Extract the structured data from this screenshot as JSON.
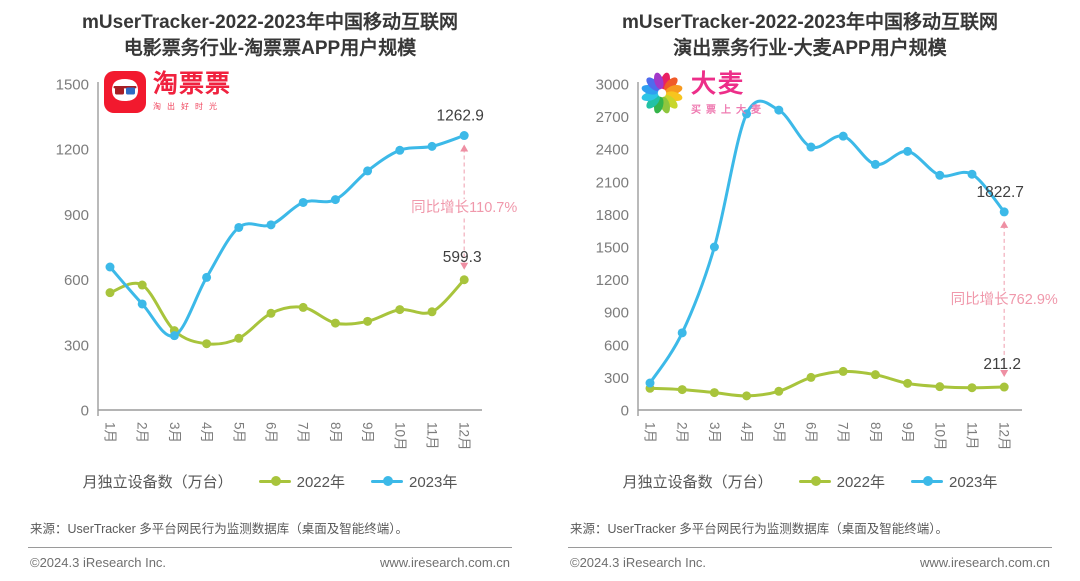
{
  "colors": {
    "green_2022": "#a8c43c",
    "blue_2023": "#3cb9e8",
    "annotation_pink": "#f098ab",
    "dashed_pink": "#f3b4c0",
    "arrow_pink": "#ee8fa3",
    "axis_gray": "#9c9c9c",
    "tick_text": "#7c7c7c",
    "value_text": "#3f3f3f",
    "taopiaopiao_red": "#f2192e",
    "damai_pink": "#ed2e89"
  },
  "chart_data": [
    {
      "type": "line",
      "title_lines": [
        "mUserTracker-2022-2023年中国移动互联网",
        "电影票务行业-淘票票APP用户规模"
      ],
      "brand": {
        "name": "淘票票",
        "tagline": "淘出好时光"
      },
      "categories": [
        "1月",
        "2月",
        "3月",
        "4月",
        "5月",
        "6月",
        "7月",
        "8月",
        "9月",
        "10月",
        "11月",
        "12月"
      ],
      "series": [
        {
          "name": "2022年",
          "color": "#a8c43c",
          "values": [
            540,
            575,
            365,
            305,
            330,
            445,
            472,
            400,
            408,
            462,
            452,
            599.3
          ],
          "end_label": "599.3"
        },
        {
          "name": "2023年",
          "color": "#3cb9e8",
          "values": [
            658,
            488,
            342,
            610,
            840,
            852,
            955,
            968,
            1100,
            1195,
            1213,
            1262.9
          ],
          "end_label": "1262.9"
        }
      ],
      "ylim": [
        0,
        1500
      ],
      "ytick_step": 300,
      "grid": false,
      "legend_position": "bottom",
      "xlabel": "",
      "ylabel": "月独立设备数（万台）",
      "annotation": {
        "text": "同比增长110.7%",
        "at_category": "12月"
      }
    },
    {
      "type": "line",
      "title_lines": [
        "mUserTracker-2022-2023年中国移动互联网",
        "演出票务行业-大麦APP用户规模"
      ],
      "brand": {
        "name": "大麦",
        "tagline": "买票上大麦"
      },
      "categories": [
        "1月",
        "2月",
        "3月",
        "4月",
        "5月",
        "6月",
        "7月",
        "8月",
        "9月",
        "10月",
        "11月",
        "12月"
      ],
      "series": [
        {
          "name": "2022年",
          "color": "#a8c43c",
          "values": [
            200,
            188,
            160,
            130,
            172,
            300,
            355,
            325,
            245,
            215,
            205,
            211.2
          ],
          "end_label": "211.2"
        },
        {
          "name": "2023年",
          "color": "#3cb9e8",
          "values": [
            248,
            710,
            1500,
            2725,
            2760,
            2420,
            2520,
            2260,
            2380,
            2160,
            2170,
            1822.7
          ],
          "end_label": "1822.7"
        }
      ],
      "ylim": [
        0,
        3000
      ],
      "ytick_step": 300,
      "grid": false,
      "legend_position": "bottom",
      "xlabel": "",
      "ylabel": "月独立设备数（万台）",
      "annotation": {
        "text": "同比增长762.9%",
        "at_category": "12月"
      }
    }
  ],
  "footer": {
    "source": "来源：UserTracker 多平台网民行为监测数据库（桌面及智能终端）。",
    "copyright": "©2024.3 iResearch Inc.",
    "website": "www.iresearch.com.cn"
  }
}
